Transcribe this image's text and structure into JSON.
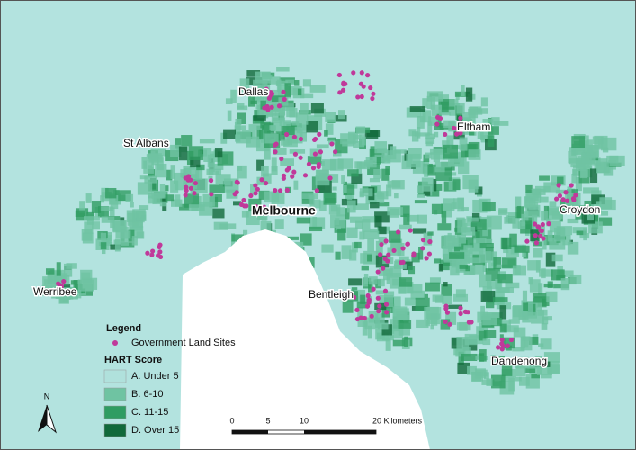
{
  "places": [
    "Dallas",
    "St Albans",
    "Eltham",
    "Melbourne",
    "Croydon",
    "Werribee",
    "Bentleigh",
    "Dandenong"
  ],
  "legend": {
    "title": "Legend",
    "sites": "Government Land Sites",
    "sites_color": "#c0399a",
    "score_title": "HART Score",
    "classes": [
      {
        "label": "A. Under 5",
        "color": "#b0e1dc"
      },
      {
        "label": "B. 6-10",
        "color": "#6fc3a2"
      },
      {
        "label": "C. 11-15",
        "color": "#2f9c62"
      },
      {
        "label": "D. Over 15",
        "color": "#10693a"
      }
    ]
  },
  "north": "N",
  "scale": [
    "0",
    "5",
    "10",
    "20 Kilometers"
  ]
}
